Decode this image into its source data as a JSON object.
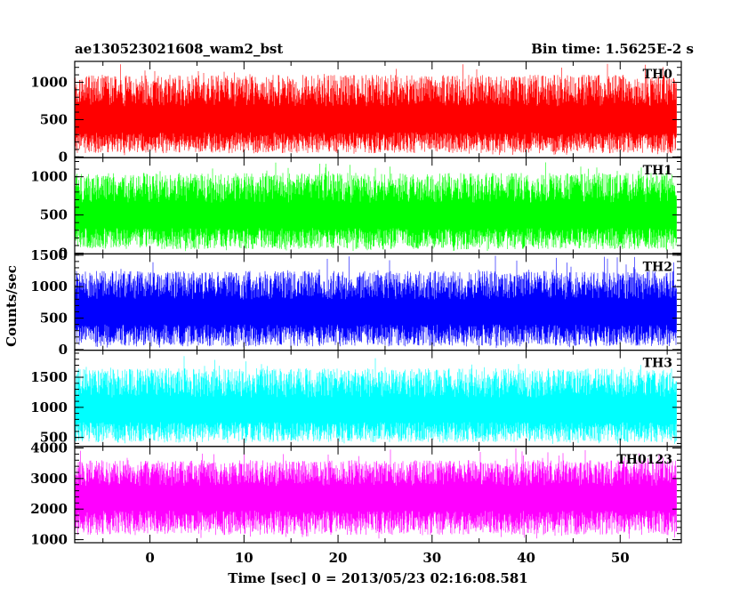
{
  "chart_data": {
    "type": "line",
    "title": "ae130523021608_wam2_bst",
    "bin_time_label": "Bin time: 1.5625E-2 s",
    "xlabel": "Time [sec] 0 = 2013/05/23 02:16:08.581",
    "ylabel": "Counts/sec",
    "xlim": [
      -8,
      56.5
    ],
    "x_data_range": [
      -8,
      56
    ],
    "x_ticks": [
      0,
      10,
      20,
      30,
      40,
      50
    ],
    "x_tick_labels": [
      "0",
      "10",
      "20",
      "30",
      "40",
      "50"
    ],
    "panels": [
      {
        "name": "TH0",
        "color": "#ff0000",
        "ylim": [
          -10,
          1280
        ],
        "y_ticks": [
          0,
          500,
          1000
        ],
        "y_tick_labels": [
          "0",
          "500",
          "1000"
        ],
        "mean": 450,
        "typical_min": 50,
        "typical_max": 1100,
        "peak_max": 1250
      },
      {
        "name": "TH1",
        "color": "#00ff00",
        "ylim": [
          -10,
          1250
        ],
        "y_ticks": [
          0,
          500,
          1000
        ],
        "y_tick_labels": [
          "0",
          "500",
          "1000"
        ],
        "mean": 450,
        "typical_min": 50,
        "typical_max": 1050,
        "peak_max": 1200
      },
      {
        "name": "TH2",
        "color": "#0000ff",
        "ylim": [
          -10,
          1520
        ],
        "y_ticks": [
          0,
          500,
          1000,
          1500
        ],
        "y_tick_labels": [
          "0",
          "500",
          "1000",
          "1500"
        ],
        "mean": 550,
        "typical_min": 50,
        "typical_max": 1250,
        "peak_max": 1500
      },
      {
        "name": "TH3",
        "color": "#00ffff",
        "ylim": [
          350,
          1950
        ],
        "y_ticks": [
          500,
          1000,
          1500
        ],
        "y_tick_labels": [
          "500",
          "1000",
          "1500"
        ],
        "mean": 900,
        "typical_min": 420,
        "typical_max": 1650,
        "peak_max": 1900
      },
      {
        "name": "TH0123",
        "color": "#ff00ff",
        "ylim": [
          900,
          4050
        ],
        "y_ticks": [
          1000,
          2000,
          3000,
          4000
        ],
        "y_tick_labels": [
          "1000",
          "2000",
          "3000",
          "4000"
        ],
        "mean": 2300,
        "typical_min": 1150,
        "typical_max": 3600,
        "peak_max": 4000
      }
    ]
  }
}
